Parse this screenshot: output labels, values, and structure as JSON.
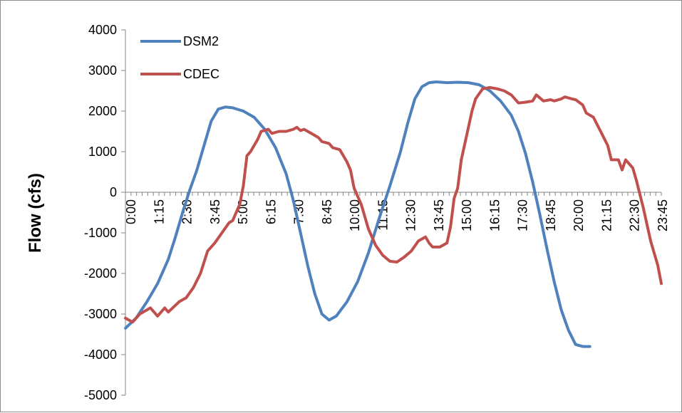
{
  "chart_data": {
    "type": "line",
    "title": "",
    "xlabel": "",
    "ylabel": "Flow (cfs)",
    "ylim": [
      -5000,
      4000
    ],
    "yticks": [
      4000,
      3000,
      2000,
      1000,
      0,
      -1000,
      -2000,
      -3000,
      -4000,
      -5000
    ],
    "xtick_labels": [
      "0:00",
      "1:15",
      "2:30",
      "3:45",
      "5:00",
      "6:15",
      "7:30",
      "8:45",
      "10:00",
      "11:15",
      "12:30",
      "13:45",
      "15:00",
      "16:15",
      "17:30",
      "18:45",
      "20:00",
      "21:15",
      "22:30",
      "23:45"
    ],
    "x_unit_minutes": 15,
    "x_count": 96,
    "grid": false,
    "legend_position": "top-left",
    "series": [
      {
        "name": "DSM2",
        "color": "#4F81BD",
        "points": [
          [
            0,
            -3350
          ],
          [
            3,
            -3100
          ],
          [
            6,
            -2700
          ],
          [
            9,
            -2250
          ],
          [
            12,
            -1650
          ],
          [
            14,
            -1100
          ],
          [
            16,
            -500
          ],
          [
            18,
            50
          ],
          [
            20,
            550
          ],
          [
            22,
            1150
          ],
          [
            24,
            1750
          ],
          [
            26,
            2050
          ],
          [
            28,
            2100
          ],
          [
            30,
            2080
          ],
          [
            33,
            2000
          ],
          [
            36,
            1850
          ],
          [
            39,
            1550
          ],
          [
            42,
            1100
          ],
          [
            45,
            450
          ],
          [
            47,
            -200
          ],
          [
            49,
            -1000
          ],
          [
            51,
            -1800
          ],
          [
            53,
            -2500
          ],
          [
            55,
            -3000
          ],
          [
            57,
            -3150
          ],
          [
            59,
            -3050
          ],
          [
            62,
            -2700
          ],
          [
            65,
            -2200
          ],
          [
            68,
            -1500
          ],
          [
            71,
            -650
          ],
          [
            74,
            150
          ],
          [
            77,
            1000
          ],
          [
            79,
            1700
          ],
          [
            81,
            2300
          ],
          [
            83,
            2600
          ],
          [
            85,
            2700
          ],
          [
            87,
            2720
          ],
          [
            90,
            2700
          ],
          [
            93,
            2710
          ],
          [
            96,
            2700
          ],
          [
            99,
            2650
          ],
          [
            102,
            2500
          ],
          [
            105,
            2250
          ],
          [
            108,
            1900
          ],
          [
            110,
            1500
          ],
          [
            112,
            950
          ],
          [
            114,
            250
          ],
          [
            116,
            -550
          ],
          [
            118,
            -1400
          ],
          [
            120,
            -2200
          ],
          [
            122,
            -2900
          ],
          [
            124,
            -3400
          ],
          [
            126,
            -3750
          ],
          [
            128,
            -3800
          ],
          [
            130,
            -3800
          ]
        ]
      },
      {
        "name": "CDEC",
        "color": "#C0504D",
        "points": [
          [
            0,
            -3100
          ],
          [
            2,
            -3200
          ],
          [
            4,
            -3000
          ],
          [
            6,
            -2900
          ],
          [
            7,
            -2850
          ],
          [
            9,
            -3050
          ],
          [
            11,
            -2850
          ],
          [
            12,
            -2950
          ],
          [
            15,
            -2700
          ],
          [
            17,
            -2600
          ],
          [
            19,
            -2350
          ],
          [
            21,
            -2000
          ],
          [
            23,
            -1450
          ],
          [
            25,
            -1250
          ],
          [
            27,
            -1000
          ],
          [
            29,
            -750
          ],
          [
            30,
            -700
          ],
          [
            32,
            -300
          ],
          [
            33,
            150
          ],
          [
            34,
            900
          ],
          [
            35,
            1000
          ],
          [
            37,
            1300
          ],
          [
            38,
            1500
          ],
          [
            40,
            1550
          ],
          [
            41,
            1450
          ],
          [
            43,
            1500
          ],
          [
            45,
            1500
          ],
          [
            47,
            1550
          ],
          [
            48,
            1600
          ],
          [
            49,
            1520
          ],
          [
            50,
            1550
          ],
          [
            52,
            1450
          ],
          [
            54,
            1350
          ],
          [
            55,
            1250
          ],
          [
            57,
            1200
          ],
          [
            58,
            1100
          ],
          [
            60,
            1050
          ],
          [
            62,
            750
          ],
          [
            63,
            550
          ],
          [
            64,
            100
          ],
          [
            66,
            -300
          ],
          [
            67,
            -600
          ],
          [
            68,
            -900
          ],
          [
            70,
            -1300
          ],
          [
            72,
            -1550
          ],
          [
            74,
            -1700
          ],
          [
            76,
            -1720
          ],
          [
            78,
            -1600
          ],
          [
            80,
            -1450
          ],
          [
            82,
            -1200
          ],
          [
            84,
            -1100
          ],
          [
            85,
            -1250
          ],
          [
            86,
            -1350
          ],
          [
            88,
            -1350
          ],
          [
            90,
            -1250
          ],
          [
            91,
            -850
          ],
          [
            92,
            -150
          ],
          [
            93,
            100
          ],
          [
            94,
            800
          ],
          [
            95,
            1200
          ],
          [
            96,
            1600
          ],
          [
            97,
            2000
          ],
          [
            98,
            2300
          ],
          [
            100,
            2550
          ],
          [
            102,
            2580
          ],
          [
            104,
            2550
          ],
          [
            106,
            2500
          ],
          [
            108,
            2400
          ],
          [
            110,
            2200
          ],
          [
            112,
            2220
          ],
          [
            114,
            2250
          ],
          [
            115,
            2400
          ],
          [
            117,
            2250
          ],
          [
            119,
            2280
          ],
          [
            120,
            2250
          ],
          [
            122,
            2300
          ],
          [
            123,
            2350
          ],
          [
            125,
            2300
          ],
          [
            126,
            2280
          ],
          [
            128,
            2150
          ],
          [
            129,
            1950
          ],
          [
            131,
            1850
          ],
          [
            133,
            1500
          ],
          [
            135,
            1150
          ],
          [
            136,
            800
          ],
          [
            138,
            800
          ],
          [
            139,
            550
          ],
          [
            140,
            800
          ],
          [
            142,
            600
          ],
          [
            143,
            300
          ],
          [
            145,
            -400
          ],
          [
            147,
            -1200
          ],
          [
            149,
            -1800
          ],
          [
            150,
            -2250
          ]
        ]
      }
    ]
  }
}
